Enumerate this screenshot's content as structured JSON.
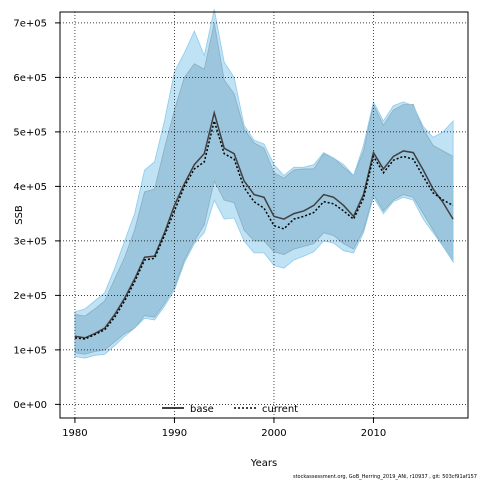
{
  "chart_data": {
    "type": "line",
    "xlabel": "Years",
    "ylabel": "SSB",
    "xlim": [
      1978.5,
      2019.5
    ],
    "ylim": [
      -25000,
      720000
    ],
    "x_ticks": [
      1980,
      1990,
      2000,
      2010
    ],
    "x_tick_labels": [
      "1980",
      "1990",
      "2000",
      "2010"
    ],
    "y_ticks": [
      0,
      100000,
      200000,
      300000,
      400000,
      500000,
      600000,
      700000
    ],
    "y_tick_labels": [
      "0e+00",
      "1e+05",
      "2e+05",
      "3e+05",
      "4e+05",
      "5e+05",
      "6e+05",
      "7e+05"
    ],
    "grid": true,
    "legend_position": "bottom-center",
    "footer": "stockassessment.org, GoB_Herring_2019_ANi, r10937 , git: 503cf91af157",
    "x": [
      1980,
      1981,
      1982,
      1983,
      1984,
      1985,
      1986,
      1987,
      1988,
      1989,
      1990,
      1991,
      1992,
      1993,
      1994,
      1995,
      1996,
      1997,
      1998,
      1999,
      2000,
      2001,
      2002,
      2003,
      2004,
      2005,
      2006,
      2007,
      2008,
      2009,
      2010,
      2011,
      2012,
      2013,
      2014,
      2015,
      2016,
      2017,
      2018
    ],
    "series": [
      {
        "name": "base",
        "color": "#404040",
        "dash": "solid",
        "values": [
          125000,
          122000,
          130000,
          140000,
          165000,
          195000,
          230000,
          270000,
          272000,
          315000,
          365000,
          405000,
          440000,
          460000,
          535000,
          470000,
          460000,
          410000,
          385000,
          380000,
          345000,
          340000,
          350000,
          355000,
          365000,
          385000,
          380000,
          365000,
          345000,
          385000,
          462000,
          432000,
          455000,
          465000,
          462000,
          430000,
          395000,
          370000,
          340000
        ],
        "band_lower": [
          95000,
          92000,
          97000,
          100000,
          115000,
          130000,
          140000,
          163000,
          160000,
          185000,
          215000,
          265000,
          300000,
          330000,
          410000,
          375000,
          370000,
          320000,
          300000,
          300000,
          280000,
          275000,
          285000,
          290000,
          295000,
          315000,
          310000,
          295000,
          285000,
          320000,
          385000,
          355000,
          375000,
          385000,
          380000,
          350000,
          320000,
          290000,
          262000
        ],
        "band_upper": [
          165000,
          162000,
          175000,
          190000,
          230000,
          270000,
          320000,
          390000,
          395000,
          470000,
          540000,
          600000,
          625000,
          615000,
          700000,
          595000,
          570000,
          505000,
          480000,
          470000,
          425000,
          415000,
          430000,
          432000,
          432000,
          460000,
          452000,
          435000,
          420000,
          465000,
          550000,
          512000,
          540000,
          550000,
          550000,
          505000,
          475000,
          465000,
          455000
        ]
      },
      {
        "name": "current",
        "color": "#000000",
        "dash": "dotted",
        "values": [
          122000,
          120000,
          128000,
          137000,
          160000,
          190000,
          225000,
          265000,
          268000,
          310000,
          355000,
          400000,
          432000,
          445000,
          520000,
          460000,
          450000,
          398000,
          372000,
          360000,
          328000,
          322000,
          340000,
          345000,
          352000,
          372000,
          368000,
          355000,
          340000,
          378000,
          455000,
          425000,
          448000,
          455000,
          450000,
          418000,
          388000,
          375000,
          365000
        ],
        "band_lower": [
          88000,
          85000,
          90000,
          92000,
          108000,
          125000,
          140000,
          158000,
          155000,
          180000,
          210000,
          260000,
          295000,
          315000,
          375000,
          340000,
          342000,
          300000,
          278000,
          278000,
          255000,
          250000,
          265000,
          272000,
          280000,
          300000,
          296000,
          282000,
          278000,
          315000,
          380000,
          350000,
          372000,
          380000,
          375000,
          340000,
          315000,
          290000,
          262000
        ],
        "band_upper": [
          170000,
          175000,
          190000,
          205000,
          250000,
          300000,
          350000,
          430000,
          445000,
          520000,
          610000,
          645000,
          685000,
          640000,
          725000,
          628000,
          600000,
          512000,
          485000,
          478000,
          440000,
          420000,
          435000,
          435000,
          440000,
          462000,
          452000,
          440000,
          420000,
          475000,
          555000,
          520000,
          548000,
          555000,
          548000,
          510000,
          490000,
          500000,
          520000
        ]
      }
    ]
  }
}
